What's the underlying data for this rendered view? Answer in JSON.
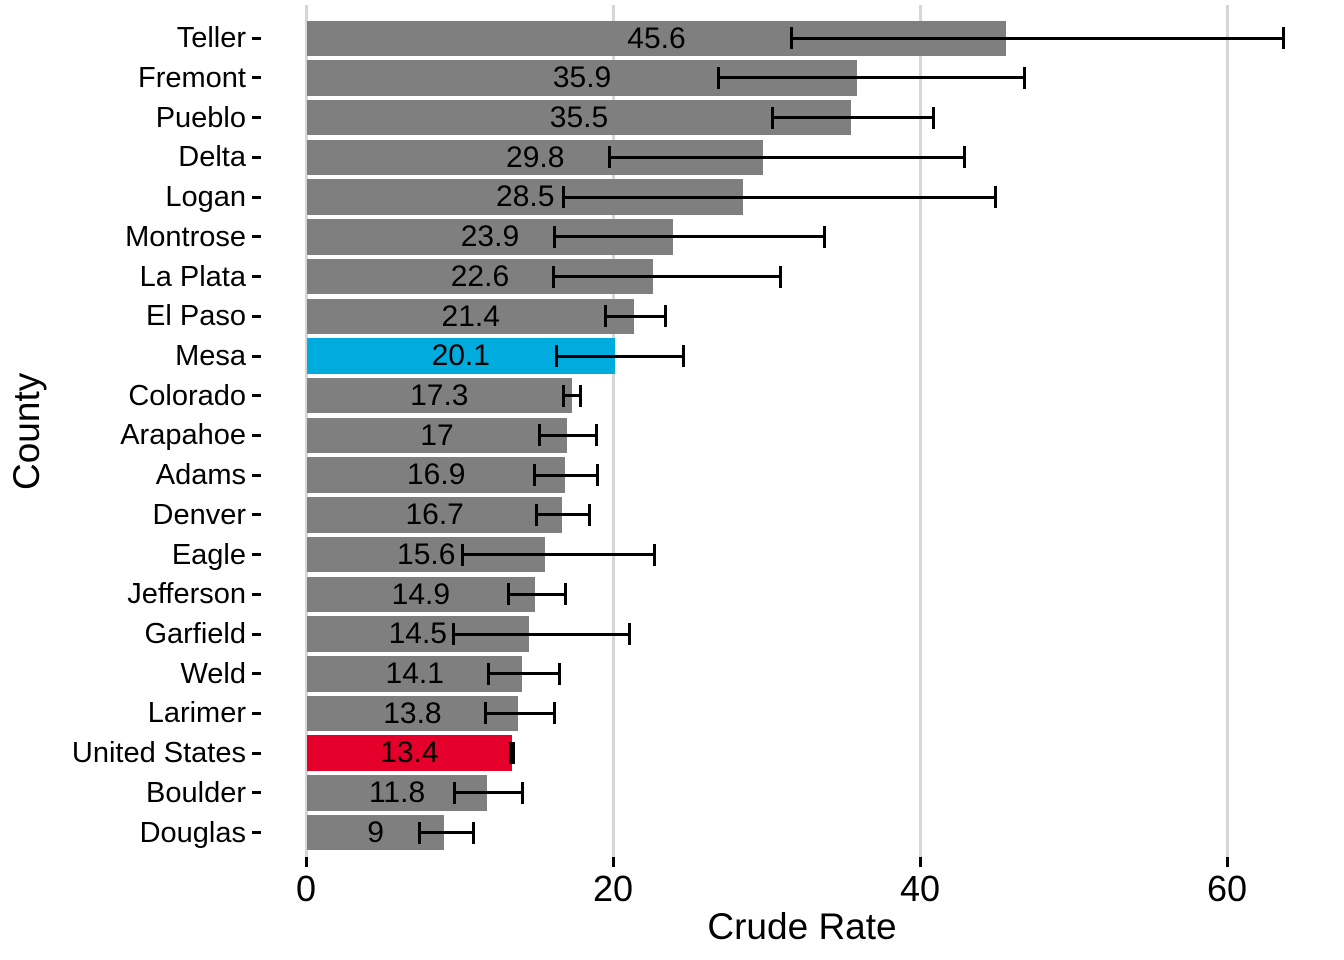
{
  "chart_data": {
    "type": "bar",
    "orientation": "horizontal",
    "title": "",
    "xlabel": "Crude Rate",
    "ylabel": "County",
    "x_ticks": [
      0,
      20,
      40,
      60
    ],
    "xlim": [
      0,
      67.5
    ],
    "grid": "vertical major gridlines only",
    "legend": "none",
    "categories": [
      "Teller",
      "Fremont",
      "Pueblo",
      "Delta",
      "Logan",
      "Montrose",
      "La Plata",
      "El Paso",
      "Mesa",
      "Colorado",
      "Arapahoe",
      "Adams",
      "Denver",
      "Eagle",
      "Jefferson",
      "Garfield",
      "Weld",
      "Larimer",
      "United States",
      "Boulder",
      "Douglas"
    ],
    "values": [
      45.6,
      35.9,
      35.5,
      29.8,
      28.5,
      23.9,
      22.6,
      21.4,
      20.1,
      17.3,
      17,
      16.9,
      16.7,
      15.6,
      14.9,
      14.5,
      14.1,
      13.8,
      13.4,
      11.8,
      9
    ],
    "value_labels": [
      "45.6",
      "35.9",
      "35.5",
      "29.8",
      "28.5",
      "23.9",
      "22.6",
      "21.4",
      "20.1",
      "17.3",
      "17",
      "16.9",
      "16.7",
      "15.6",
      "14.9",
      "14.5",
      "14.1",
      "13.8",
      "13.4",
      "11.8",
      "9"
    ],
    "ci_low": [
      31.6,
      26.9,
      30.4,
      19.8,
      16.8,
      16.2,
      16.1,
      19.5,
      16.3,
      16.8,
      15.2,
      14.9,
      15.0,
      10.2,
      13.2,
      9.6,
      11.9,
      11.7,
      13.3,
      9.7,
      7.4
    ],
    "ci_high": [
      63.7,
      46.8,
      40.9,
      42.9,
      44.9,
      33.8,
      30.9,
      23.4,
      24.6,
      17.9,
      18.9,
      19.0,
      18.5,
      22.7,
      16.9,
      21.1,
      16.5,
      16.2,
      13.5,
      14.1,
      10.9
    ],
    "bar_colors": [
      "#7f7f7f",
      "#7f7f7f",
      "#7f7f7f",
      "#7f7f7f",
      "#7f7f7f",
      "#7f7f7f",
      "#7f7f7f",
      "#7f7f7f",
      "#00acde",
      "#7f7f7f",
      "#7f7f7f",
      "#7f7f7f",
      "#7f7f7f",
      "#7f7f7f",
      "#7f7f7f",
      "#7f7f7f",
      "#7f7f7f",
      "#7f7f7f",
      "#e4002b",
      "#7f7f7f",
      "#7f7f7f"
    ],
    "highlights": [
      {
        "category": "Mesa",
        "color": "#00acde"
      },
      {
        "category": "United States",
        "color": "#e4002b"
      }
    ]
  },
  "colors": {
    "bar_default": "#7f7f7f",
    "bar_highlight_blue": "#00acde",
    "bar_highlight_red": "#e4002b",
    "gridline": "#d6d6d6",
    "text": "#000000",
    "background": "#ffffff"
  }
}
